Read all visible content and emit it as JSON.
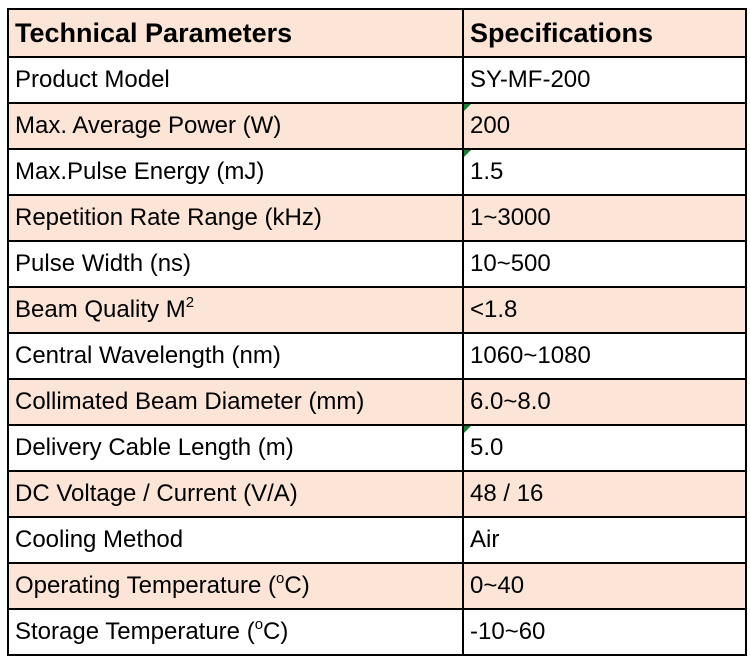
{
  "table": {
    "header": {
      "param": "Technical Parameters",
      "spec": "Specifications"
    },
    "rows": [
      {
        "param": "Product Model",
        "spec": "SY-MF-200",
        "shaded": false
      },
      {
        "param": "Max. Average Power (W)",
        "spec": "200",
        "shaded": true,
        "comment_marker": true
      },
      {
        "param": "Max.Pulse Energy (mJ)",
        "spec": "1.5",
        "shaded": false,
        "comment_marker": true
      },
      {
        "param": "Repetition Rate Range (kHz)",
        "spec": "1~3000",
        "shaded": true
      },
      {
        "param": "Pulse Width (ns)",
        "spec": "10~500",
        "shaded": false
      },
      {
        "param": "Beam Quality M",
        "param_sup": "2",
        "spec": "<1.8",
        "shaded": true
      },
      {
        "param": "Central Wavelength (nm)",
        "spec": "1060~1080",
        "shaded": false
      },
      {
        "param": "Collimated Beam Diameter (mm)",
        "spec": "6.0~8.0",
        "shaded": true
      },
      {
        "param": "Delivery Cable Length (m)",
        "spec": "5.0",
        "shaded": false,
        "comment_marker": true
      },
      {
        "param": "DC Voltage / Current (V/A)",
        "spec": "48 / 16",
        "shaded": true
      },
      {
        "param": "Cooling Method",
        "spec": "Air",
        "shaded": false
      },
      {
        "param": "Operating Temperature (",
        "param_sup": "o",
        "param_after": "C)",
        "spec": "0~40",
        "shaded": true
      },
      {
        "param": "Storage Temperature (",
        "param_sup": "o",
        "param_after": "C)",
        "spec": "-10~60",
        "shaded": false
      }
    ]
  },
  "colors": {
    "header_background": "#fce4d6",
    "shaded_row": "#fce4d6",
    "plain_row": "#ffffff",
    "border": "#000000",
    "comment_marker": "#1e7b3a"
  }
}
